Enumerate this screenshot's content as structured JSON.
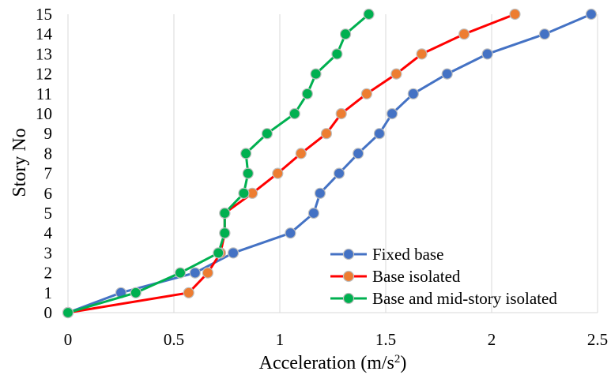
{
  "chart_data": {
    "type": "line",
    "title": "",
    "xlabel": "Acceleration (m/s",
    "xlabel_sup": "2",
    "xlabel_suffix": ")",
    "ylabel": "Story No",
    "xlim": [
      0,
      2.5
    ],
    "ylim": [
      0,
      15
    ],
    "x_ticks": [
      0,
      0.5,
      1,
      1.5,
      2,
      2.5
    ],
    "x_tick_labels": [
      "0",
      "0.5",
      "1",
      "1.5",
      "2",
      "2.5"
    ],
    "y_ticks": [
      0,
      1,
      2,
      3,
      4,
      5,
      6,
      7,
      8,
      9,
      10,
      11,
      12,
      13,
      14,
      15
    ],
    "y_tick_labels": [
      "0",
      "1",
      "2",
      "3",
      "4",
      "5",
      "6",
      "7",
      "8",
      "9",
      "10",
      "11",
      "12",
      "13",
      "14",
      "15"
    ],
    "grid": "vertical",
    "legend_position": "bottom-right",
    "series": [
      {
        "name": "Fixed base",
        "line_color": "#4472C4",
        "marker_color": "#4472C4",
        "x": [
          0,
          0.25,
          0.6,
          0.78,
          1.05,
          1.16,
          1.19,
          1.28,
          1.37,
          1.47,
          1.53,
          1.63,
          1.79,
          1.98,
          2.25,
          2.47
        ],
        "y": [
          0,
          1,
          2,
          3,
          4,
          5,
          6,
          7,
          8,
          9,
          10,
          11,
          12,
          13,
          14,
          15
        ]
      },
      {
        "name": "Base isolated",
        "line_color": "#FF0000",
        "marker_color": "#ED7D31",
        "x": [
          0,
          0.57,
          0.66,
          0.72,
          0.74,
          0.74,
          0.87,
          0.99,
          1.1,
          1.22,
          1.29,
          1.41,
          1.55,
          1.67,
          1.87,
          2.11
        ],
        "y": [
          0,
          1,
          2,
          3,
          4,
          5,
          6,
          7,
          8,
          9,
          10,
          11,
          12,
          13,
          14,
          15
        ]
      },
      {
        "name": "Base and mid-story isolated",
        "line_color": "#00B050",
        "marker_color": "#00B050",
        "x": [
          0,
          0.32,
          0.53,
          0.71,
          0.74,
          0.74,
          0.83,
          0.85,
          0.84,
          0.94,
          1.07,
          1.13,
          1.17,
          1.27,
          1.31,
          1.42
        ],
        "y": [
          0,
          1,
          2,
          3,
          4,
          5,
          6,
          7,
          8,
          9,
          10,
          11,
          12,
          13,
          14,
          15
        ]
      }
    ]
  }
}
